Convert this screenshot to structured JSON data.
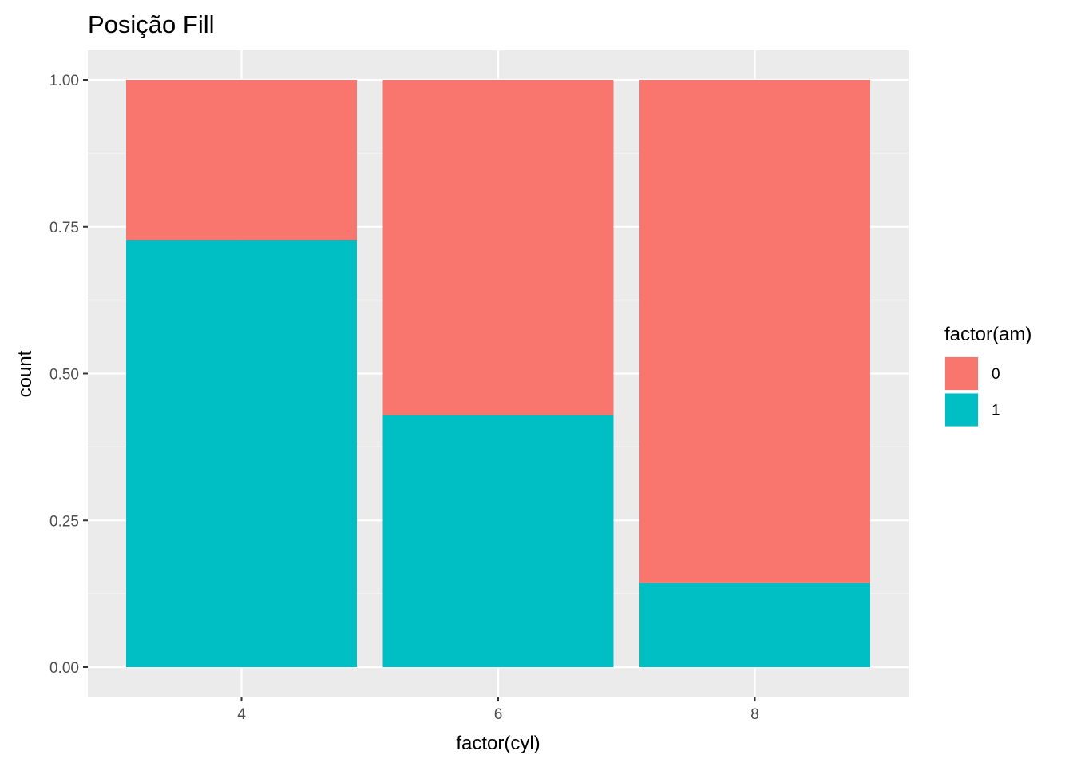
{
  "chart_data": {
    "type": "bar",
    "stacked": true,
    "position": "fill",
    "title": "Posição Fill",
    "xlabel": "factor(cyl)",
    "ylabel": "count",
    "categories": [
      "4",
      "6",
      "8"
    ],
    "ylim": [
      0,
      1
    ],
    "yticks": [
      "0.00",
      "0.25",
      "0.50",
      "0.75",
      "1.00"
    ],
    "ytick_values": [
      0,
      0.25,
      0.5,
      0.75,
      1.0
    ],
    "grid": true,
    "legend": {
      "title": "factor(am)",
      "placement": "right",
      "entries": [
        "0",
        "1"
      ]
    },
    "series": [
      {
        "name": "1",
        "values": [
          0.727,
          0.429,
          0.143
        ],
        "color": "#00BFC4"
      },
      {
        "name": "0",
        "values": [
          0.273,
          0.571,
          0.857
        ],
        "color": "#F8766D"
      }
    ],
    "panel_background": "#EBEBEB",
    "grid_color": "#FFFFFF"
  }
}
